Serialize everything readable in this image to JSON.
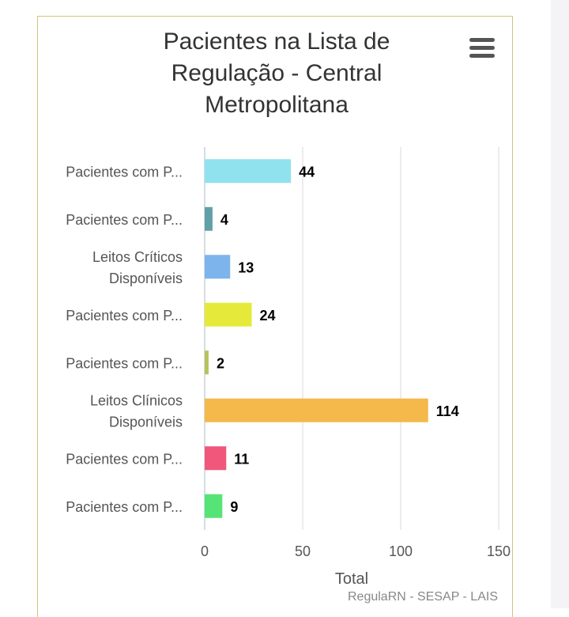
{
  "chart_data": {
    "type": "bar",
    "orientation": "horizontal",
    "title_lines": [
      "Pacientes na Lista de",
      "Regulação - Central",
      "Metropolitana"
    ],
    "categories": [
      [
        "Pacientes com P..."
      ],
      [
        "Pacientes com P..."
      ],
      [
        "Leitos Críticos",
        "Disponíveis"
      ],
      [
        "Pacientes com P..."
      ],
      [
        "Pacientes com P..."
      ],
      [
        "Leitos Clínicos",
        "Disponíveis"
      ],
      [
        "Pacientes com P..."
      ],
      [
        "Pacientes com P..."
      ]
    ],
    "values": [
      44,
      4,
      13,
      24,
      2,
      114,
      11,
      9
    ],
    "colors": [
      "#90e2ee",
      "#62a0a8",
      "#7db4ec",
      "#e5ea3a",
      "#b7c25c",
      "#f5b84b",
      "#f1577a",
      "#56e476"
    ],
    "xlabel": "Total",
    "xlim": [
      0,
      150
    ],
    "xticks": [
      0,
      50,
      100,
      150
    ],
    "grid": true,
    "data_labels": true
  },
  "credits": "RegulaRN - SESAP - LAIS",
  "menu_icon": "hamburger-menu-icon"
}
